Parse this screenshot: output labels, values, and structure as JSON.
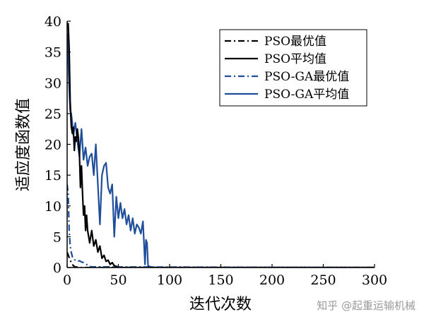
{
  "chart_data": {
    "type": "line",
    "xlabel": "迭代次数",
    "ylabel": "适应度函数值",
    "xlim": [
      0,
      300
    ],
    "ylim": [
      0,
      40
    ],
    "xticks": [
      0,
      50,
      100,
      150,
      200,
      250,
      300
    ],
    "yticks": [
      0,
      5,
      10,
      15,
      20,
      25,
      30,
      35,
      40
    ],
    "grid": false,
    "legend_position": "top-right",
    "series": [
      {
        "name": "PSO最优值",
        "color": "#000000",
        "style": "dashdot",
        "x": [
          0,
          2,
          4,
          6,
          8,
          12,
          300
        ],
        "y": [
          2.5,
          1.6,
          0.8,
          0.3,
          0.1,
          0.0,
          0.0
        ]
      },
      {
        "name": "PSO平均值",
        "color": "#000000",
        "style": "solid",
        "x": [
          0,
          1,
          2,
          3,
          4,
          5,
          6,
          7,
          8,
          9,
          10,
          11,
          12,
          13,
          14,
          15,
          16,
          17,
          18,
          19,
          20,
          22,
          24,
          26,
          28,
          30,
          32,
          34,
          36,
          38,
          40,
          42,
          44,
          46,
          48,
          50,
          55,
          300
        ],
        "y": [
          39.5,
          39.6,
          35.5,
          27.0,
          23.0,
          21.8,
          22.8,
          19.0,
          21.2,
          20.5,
          22.5,
          21.0,
          18.5,
          13.0,
          16.5,
          12.0,
          8.5,
          10.0,
          6.0,
          8.5,
          6.0,
          4.0,
          6.0,
          3.5,
          4.5,
          2.5,
          3.5,
          1.5,
          2.0,
          1.0,
          1.2,
          0.5,
          0.8,
          0.3,
          0.2,
          0.1,
          0.0,
          0.0
        ]
      },
      {
        "name": "PSO-GA最优值",
        "color": "#1f4e9a",
        "style": "dashdot",
        "x": [
          0,
          1,
          2,
          3,
          4,
          5,
          6,
          8,
          10,
          12,
          14,
          16,
          18,
          20,
          22,
          24,
          300
        ],
        "y": [
          13.5,
          12.0,
          6.0,
          3.5,
          2.5,
          1.8,
          1.4,
          1.2,
          1.0,
          1.1,
          0.9,
          0.8,
          0.6,
          0.4,
          0.2,
          0.1,
          0.0
        ]
      },
      {
        "name": "PSO-GA平均值",
        "color": "#1f4e9a",
        "style": "solid",
        "x": [
          0,
          1,
          2,
          3,
          4,
          5,
          6,
          8,
          10,
          12,
          14,
          16,
          18,
          20,
          22,
          24,
          26,
          28,
          30,
          32,
          34,
          36,
          38,
          40,
          42,
          44,
          46,
          48,
          50,
          52,
          54,
          56,
          58,
          60,
          62,
          64,
          66,
          68,
          70,
          72,
          74,
          76,
          77,
          78,
          79,
          80,
          82,
          84,
          86,
          300
        ],
        "y": [
          38.0,
          34.0,
          29.0,
          25.5,
          25.0,
          23.5,
          21.5,
          23.5,
          20.5,
          18.0,
          22.5,
          17.5,
          19.5,
          16.5,
          18.0,
          18.5,
          15.0,
          20.0,
          13.5,
          7.0,
          15.0,
          16.5,
          17.0,
          13.0,
          12.0,
          13.5,
          5.0,
          11.5,
          8.0,
          10.5,
          8.0,
          9.5,
          7.0,
          8.5,
          6.0,
          8.0,
          5.5,
          7.0,
          6.5,
          5.5,
          7.5,
          0.5,
          4.5,
          4.0,
          0.3,
          0.2,
          0.1,
          0.0,
          0.0,
          0.0
        ]
      }
    ]
  },
  "watermark": "知乎 @起重运输机械"
}
